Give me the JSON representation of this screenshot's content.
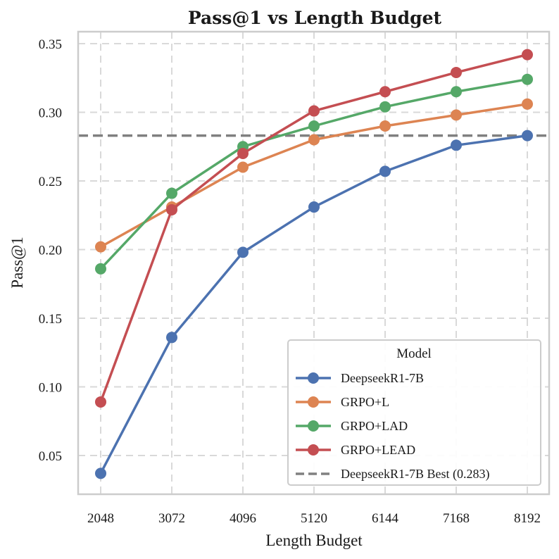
{
  "chart_data": {
    "type": "line",
    "title": "Pass@1 vs Length Budget",
    "xlabel": "Length Budget",
    "ylabel": "Pass@1",
    "x": [
      2048,
      3072,
      4096,
      5120,
      6144,
      7168,
      8192
    ],
    "x_tick_labels": [
      "2048",
      "3072",
      "4096",
      "5120",
      "6144",
      "7168",
      "8192"
    ],
    "y_ticks": [
      0.05,
      0.1,
      0.15,
      0.2,
      0.25,
      0.3,
      0.35
    ],
    "y_tick_labels": [
      "0.05",
      "0.10",
      "0.15",
      "0.20",
      "0.25",
      "0.30",
      "0.35"
    ],
    "ylim": [
      0.02,
      0.36
    ],
    "grid": true,
    "legend": {
      "title": "Model",
      "position": "bottom-right"
    },
    "series": [
      {
        "name": "DeepseekR1-7B",
        "color": "#4c72b0",
        "values": [
          0.037,
          0.136,
          0.198,
          0.231,
          0.257,
          0.276,
          0.283
        ]
      },
      {
        "name": "GRPO+L",
        "color": "#dd8452",
        "values": [
          0.202,
          0.231,
          0.26,
          0.28,
          0.29,
          0.298,
          0.306
        ]
      },
      {
        "name": "GRPO+LAD",
        "color": "#55a868",
        "values": [
          0.186,
          0.241,
          0.275,
          0.29,
          0.304,
          0.315,
          0.324
        ]
      },
      {
        "name": "GRPO+LEAD",
        "color": "#c44e52",
        "values": [
          0.089,
          0.229,
          0.27,
          0.301,
          0.315,
          0.329,
          0.342
        ]
      }
    ],
    "reference_line": {
      "name": "DeepseekR1-7B Best (0.283)",
      "value": 0.283,
      "color": "#808080",
      "style": "dashed"
    }
  }
}
